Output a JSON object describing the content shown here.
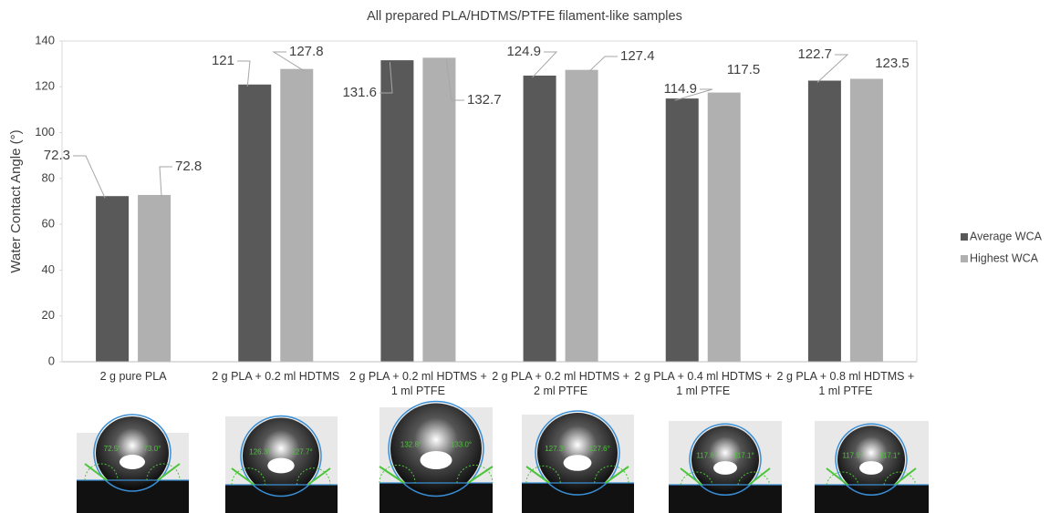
{
  "chart_data": {
    "type": "bar",
    "title": "All prepared PLA/HDTMS/PTFE filament-like samples",
    "y_label": "Water Contact Angle (°)",
    "categories": [
      "2 g pure PLA",
      "2 g PLA + 0.2 ml HDTMS",
      "2 g PLA + 0.2 ml HDTMS + 1 ml PTFE",
      "2 g PLA + 0.2 ml HDTMS + 2 ml PTFE",
      "2 g PLA + 0.4 ml HDTMS + 1 ml PTFE",
      "2 g PLA + 0.8 ml HDTMS + 1 ml PTFE"
    ],
    "series": [
      {
        "name": "Average WCA",
        "color": "#595959",
        "values": [
          72.3,
          121,
          131.6,
          124.9,
          114.9,
          122.7
        ]
      },
      {
        "name": "Highest WCA",
        "color": "#b0b0b0",
        "values": [
          72.8,
          127.8,
          132.7,
          127.4,
          117.5,
          123.5
        ]
      }
    ],
    "ylim": [
      0,
      140
    ],
    "yticks": [
      0,
      20,
      40,
      60,
      80,
      100,
      120,
      140
    ],
    "grid": false,
    "legend": "right"
  },
  "droplet_images": [
    {
      "left": "72.5°",
      "right": "73.0°"
    },
    {
      "left": "126.3°",
      "right": "127.7°"
    },
    {
      "left": "132.8°",
      "right": "133.0°"
    },
    {
      "left": "127.3°",
      "right": "127.6°"
    },
    {
      "left": "117.8°",
      "right": "117.1°"
    },
    {
      "left": "117.9°",
      "right": "117.1°"
    }
  ]
}
